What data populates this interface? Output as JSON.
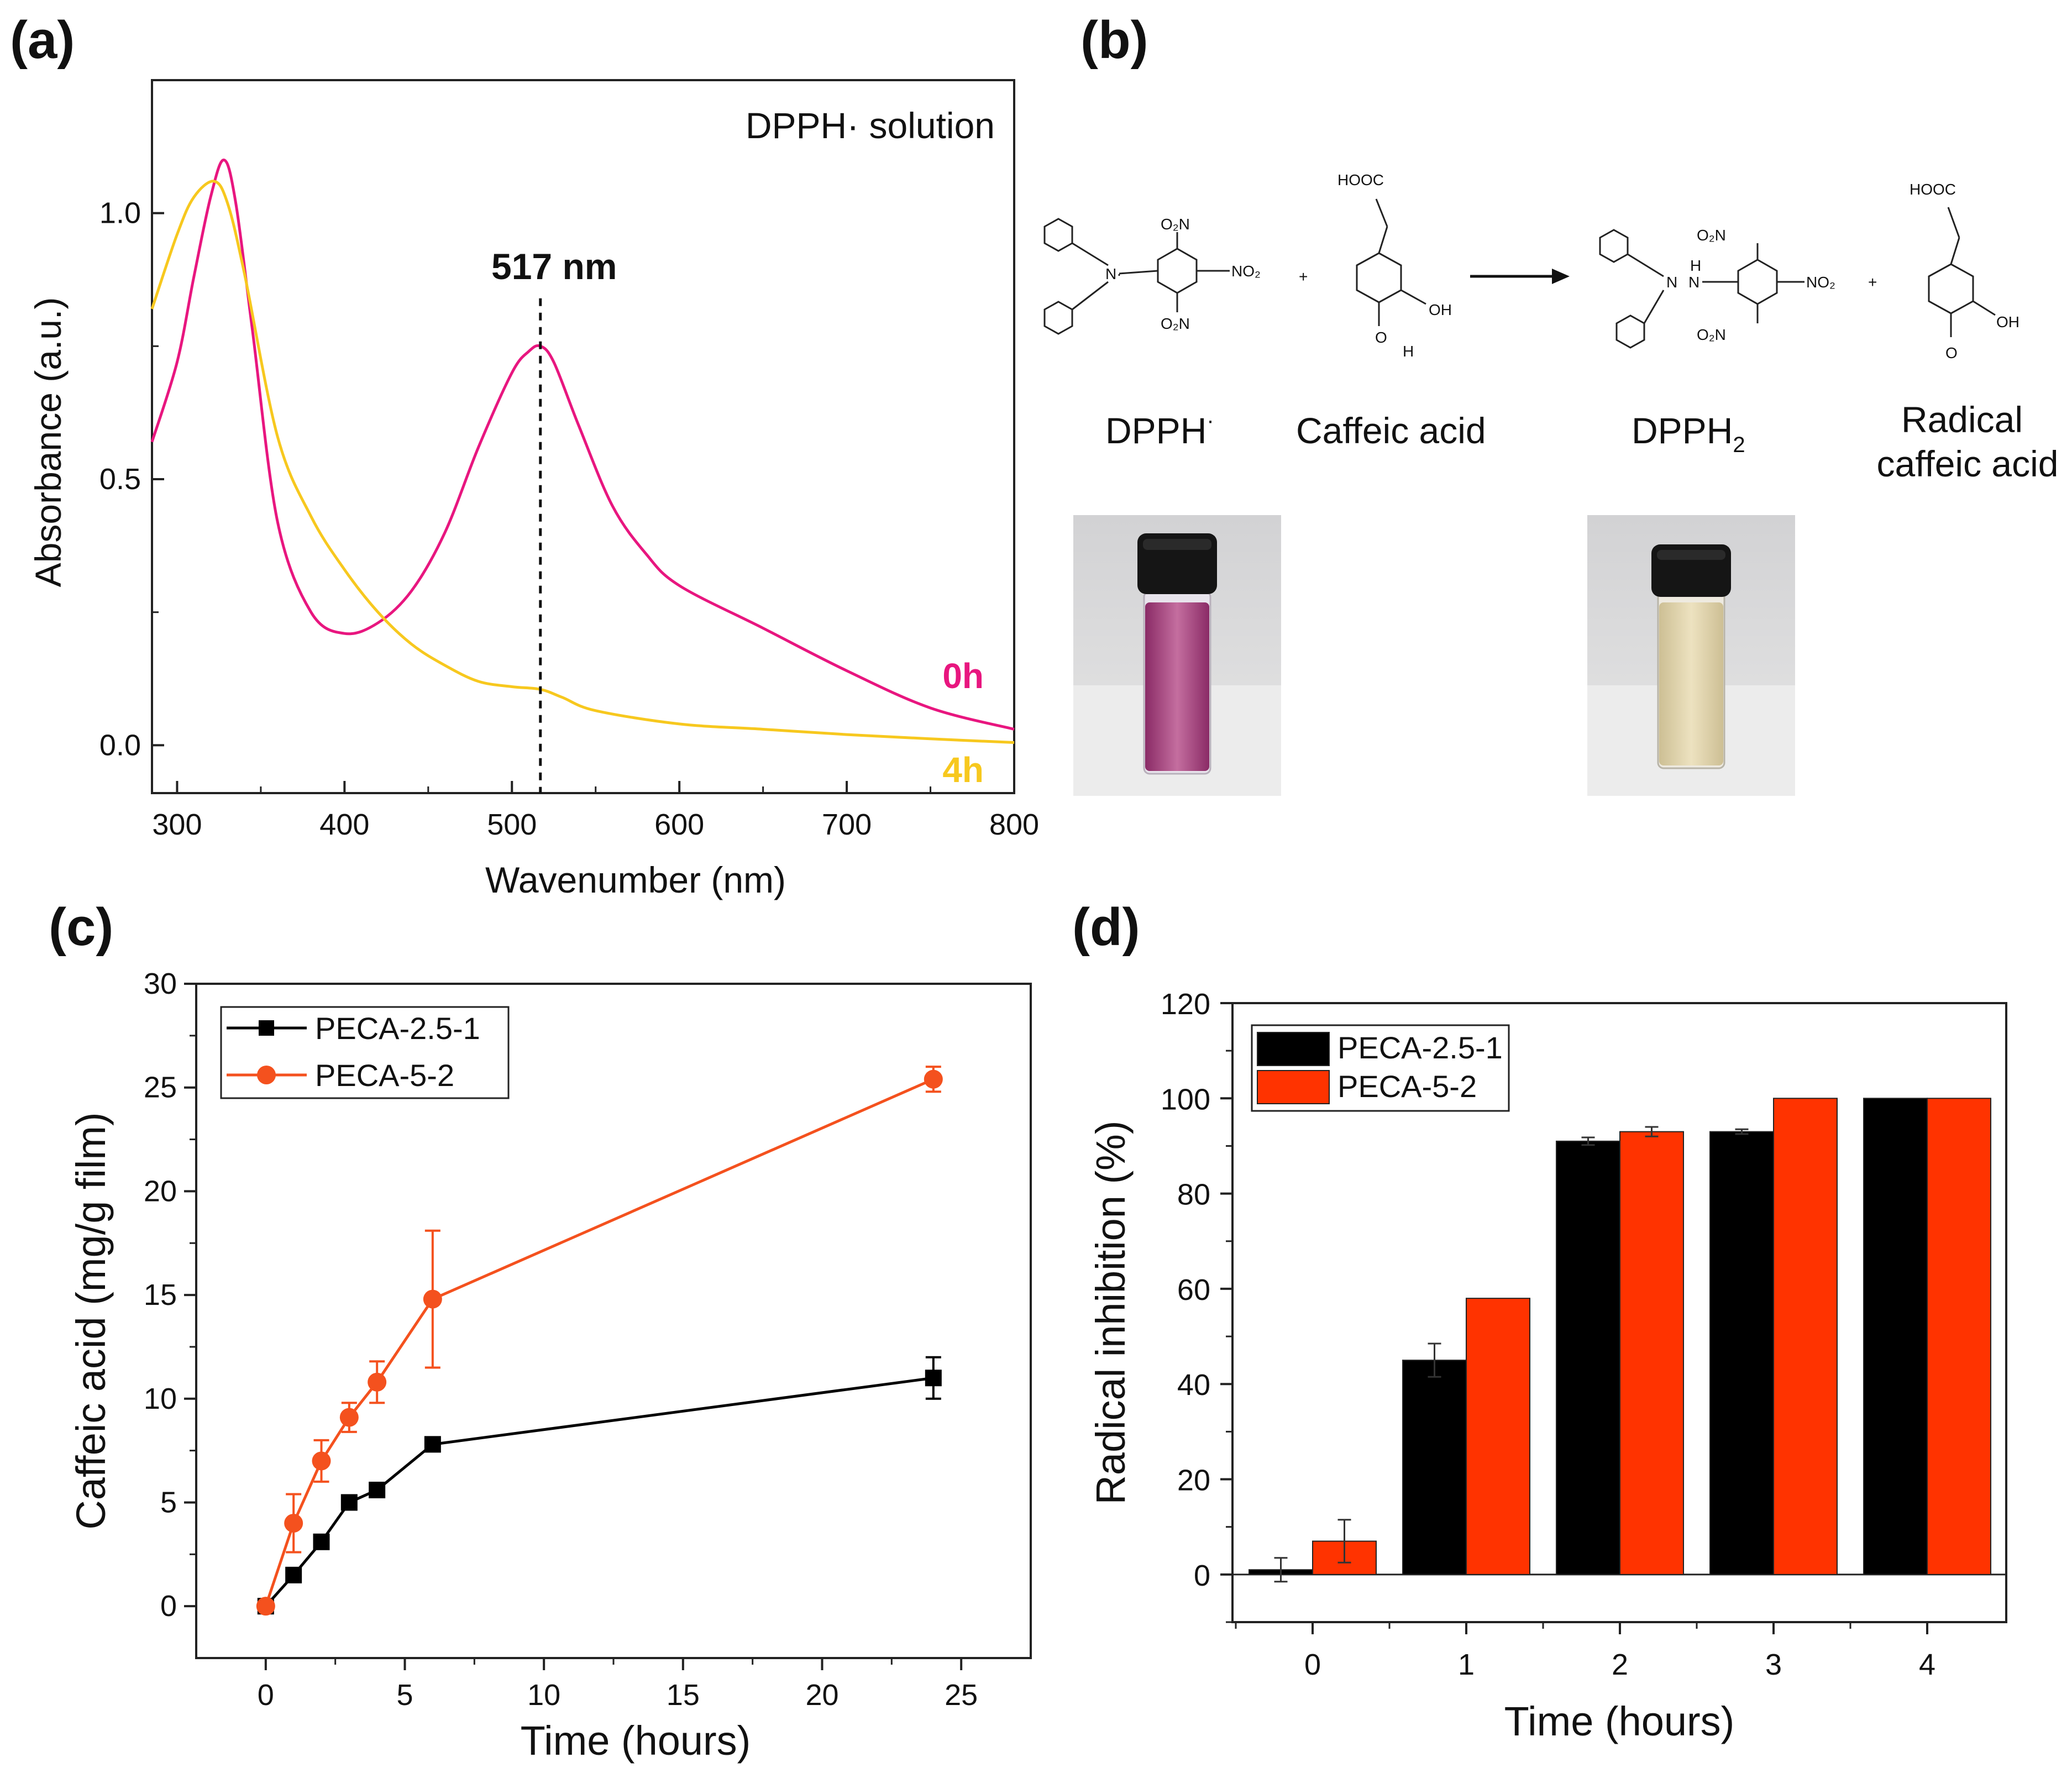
{
  "panels": {
    "a": "(a)",
    "b": "(b)",
    "c": "(c)",
    "d": "(d)"
  },
  "colors": {
    "magenta": "#e8167f",
    "yellow": "#f7c81e",
    "black": "#000000",
    "orange": "#f4511e",
    "red": "#ff3300"
  },
  "chart_data": [
    {
      "id": "a",
      "type": "line",
      "title": "",
      "annotation": "DPPH· solution",
      "peak_label": "517 nm",
      "peak_x": 517,
      "xlabel": "Wavenumber (nm)",
      "ylabel": "Absorbance (a.u.)",
      "xlim": [
        285,
        800
      ],
      "ylim": [
        -0.09,
        1.25
      ],
      "xticks": [
        300,
        400,
        500,
        600,
        700,
        800
      ],
      "yticks": [
        0.0,
        0.5,
        1.0
      ],
      "ytick_labels": [
        "0.0",
        "0.5",
        "1.0"
      ],
      "series": [
        {
          "name": "0h",
          "color": "#e8167f",
          "x": [
            285,
            300,
            310,
            320,
            328,
            335,
            345,
            360,
            380,
            400,
            420,
            440,
            460,
            480,
            500,
            510,
            517,
            525,
            540,
            560,
            580,
            600,
            650,
            700,
            750,
            800
          ],
          "y": [
            0.57,
            0.72,
            0.88,
            1.03,
            1.1,
            1.02,
            0.78,
            0.42,
            0.25,
            0.21,
            0.23,
            0.29,
            0.4,
            0.56,
            0.7,
            0.74,
            0.75,
            0.72,
            0.6,
            0.45,
            0.36,
            0.3,
            0.22,
            0.14,
            0.07,
            0.03
          ]
        },
        {
          "name": "4h",
          "color": "#f7c81e",
          "x": [
            285,
            300,
            310,
            322,
            330,
            340,
            360,
            380,
            400,
            420,
            440,
            460,
            480,
            500,
            517,
            530,
            550,
            600,
            650,
            700,
            750,
            800
          ],
          "y": [
            0.82,
            0.96,
            1.03,
            1.06,
            1.02,
            0.89,
            0.58,
            0.43,
            0.33,
            0.25,
            0.19,
            0.15,
            0.12,
            0.11,
            0.105,
            0.09,
            0.065,
            0.04,
            0.03,
            0.02,
            0.012,
            0.005
          ]
        }
      ]
    },
    {
      "id": "c",
      "type": "line",
      "title": "",
      "xlabel": "Time (hours)",
      "ylabel": "Caffeic acid (mg/g film)",
      "xlim": [
        -2.5,
        27.5
      ],
      "ylim": [
        -2.5,
        30
      ],
      "xticks": [
        0,
        5,
        10,
        15,
        20,
        25
      ],
      "yticks": [
        0,
        5,
        10,
        15,
        20,
        25,
        30
      ],
      "legend": "top-left",
      "series": [
        {
          "name": "PECA-2.5-1",
          "color": "#000000",
          "marker": "square",
          "x": [
            0,
            1,
            2,
            3,
            4,
            6,
            24
          ],
          "y": [
            0,
            1.5,
            3.1,
            5.0,
            5.6,
            7.8,
            11.0
          ],
          "err": [
            0,
            0.3,
            0.3,
            0.2,
            0.2,
            0.2,
            1.0
          ]
        },
        {
          "name": "PECA-5-2",
          "color": "#f4511e",
          "marker": "circle",
          "x": [
            0,
            1,
            2,
            3,
            4,
            6,
            24
          ],
          "y": [
            0,
            4.0,
            7.0,
            9.1,
            10.8,
            14.8,
            25.4
          ],
          "err": [
            0,
            1.4,
            1.0,
            0.7,
            1.0,
            3.3,
            0.6
          ]
        }
      ]
    },
    {
      "id": "d",
      "type": "bar",
      "title": "",
      "xlabel": "Time (hours)",
      "ylabel": "Radical inhibition (%)",
      "categories": [
        "0",
        "1",
        "2",
        "3",
        "4"
      ],
      "ylim": [
        -10,
        120
      ],
      "yticks": [
        0,
        20,
        40,
        60,
        80,
        100,
        120
      ],
      "legend": "top-left",
      "series": [
        {
          "name": "PECA-2.5-1",
          "color": "#000000",
          "values": [
            1,
            45,
            91,
            93,
            100
          ],
          "err": [
            2.5,
            3.5,
            0.8,
            0.5,
            0
          ]
        },
        {
          "name": "PECA-5-2",
          "color": "#ff3300",
          "values": [
            7,
            58,
            93,
            100,
            100
          ],
          "err": [
            4.5,
            0,
            1.0,
            0,
            0
          ]
        }
      ]
    }
  ],
  "scheme": {
    "dpph_name": "DPPH",
    "dpph_sup": "·",
    "caffeic_name": "Caffeic acid",
    "dpph2_name": "DPPH",
    "dpph2_sub": "2",
    "radical_name_1": "Radical",
    "radical_name_2": "caffeic acid",
    "plus": "+",
    "groups": {
      "no2": "NO₂",
      "o2n": "O₂N",
      "hooc": "HOOC",
      "oh": "OH",
      "n": "N",
      "h": "H",
      "o": "O",
      "n_radical": "N·"
    }
  }
}
